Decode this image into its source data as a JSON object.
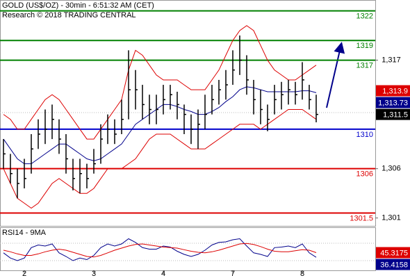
{
  "chart_data": [
    {
      "type": "ohlc",
      "title": "GOLD (US$/OZ) - 30min - 6:51:32 AM (CET)",
      "subtitle": "Research © 2018 TRADING CENTRAL",
      "xlim": [
        -0.5,
        53.5
      ],
      "ylim": [
        1300.2,
        1323.1
      ],
      "yticks": [
        {
          "value": 1317,
          "label": "1,317"
        },
        {
          "value": 1306,
          "label": "1,306"
        },
        {
          "value": 1301,
          "label": "1,301"
        }
      ],
      "xticks": [
        {
          "value": 3,
          "label": "2"
        },
        {
          "value": 13,
          "label": "3"
        },
        {
          "value": 23,
          "label": "4"
        },
        {
          "value": 33,
          "label": "7"
        },
        {
          "value": 43,
          "label": "8"
        }
      ],
      "bar_color": "#000000",
      "high": [
        1309,
        1307.5,
        1306,
        1307,
        1309.5,
        1311,
        1312,
        1312.5,
        1311,
        1309.5,
        1307,
        1307,
        1306.5,
        1308,
        1310.5,
        1311.5,
        1311,
        1313,
        1318,
        1316,
        1314.5,
        1313.5,
        1313.5,
        1314.5,
        1314.5,
        1313.8,
        1312.5,
        1311.5,
        1312,
        1313.5,
        1314.5,
        1315,
        1316,
        1318,
        1319.5,
        1317.5,
        1315,
        1314,
        1312.5,
        1314.5,
        1314.8,
        1315,
        1314.8,
        1316.8,
        1314.5,
        1313.5
      ],
      "low": [
        1306,
        1304.5,
        1303,
        1304,
        1305.5,
        1308,
        1308.5,
        1309,
        1307.5,
        1305.5,
        1303.8,
        1303.5,
        1304,
        1305.5,
        1306.5,
        1308.5,
        1308.5,
        1309.5,
        1311,
        1312,
        1311,
        1310.5,
        1310.5,
        1311.5,
        1312,
        1311,
        1309.5,
        1308.5,
        1308,
        1310,
        1311.5,
        1312.5,
        1313,
        1314.5,
        1315.5,
        1313.5,
        1311.5,
        1310.5,
        1309.8,
        1311.5,
        1312,
        1312.5,
        1312.5,
        1313,
        1312,
        1310.7
      ],
      "close": [
        1307.5,
        1305.5,
        1304.5,
        1305,
        1308,
        1309.5,
        1310,
        1311,
        1309,
        1307,
        1305,
        1305.5,
        1305,
        1306.5,
        1309,
        1310,
        1309.5,
        1311,
        1314,
        1314,
        1312.5,
        1312,
        1312,
        1313,
        1313.5,
        1312.5,
        1311.5,
        1310,
        1310.5,
        1311.5,
        1313,
        1314,
        1314.5,
        1316,
        1317,
        1315,
        1313,
        1312,
        1311,
        1313,
        1313.5,
        1314,
        1313.5,
        1315,
        1313,
        1311.5
      ],
      "bands": {
        "color": "#dd0000",
        "upper": [
          1311.5,
          1311,
          1310,
          1310,
          1311,
          1312,
          1313,
          1313.5,
          1313,
          1312,
          1311,
          1310,
          1309,
          1309,
          1310,
          1311,
          1312,
          1313,
          1316,
          1318,
          1317.5,
          1316.5,
          1315.5,
          1315,
          1315,
          1315,
          1314.5,
          1314,
          1314,
          1314,
          1315,
          1316,
          1317.5,
          1319,
          1320,
          1320.5,
          1320,
          1318.5,
          1317,
          1316,
          1315.5,
          1315,
          1315,
          1315.5,
          1316,
          1316.5
        ],
        "lower": [
          1306,
          1304.5,
          1303,
          1302.5,
          1302,
          1302.5,
          1303.5,
          1304.5,
          1305,
          1304.5,
          1304,
          1303.5,
          1303.5,
          1304,
          1305,
          1306,
          1306,
          1306,
          1306.5,
          1307,
          1308,
          1309,
          1309.5,
          1309.5,
          1309.5,
          1309,
          1308.5,
          1308,
          1308,
          1308,
          1308.5,
          1309,
          1309.5,
          1310,
          1310.5,
          1310.5,
          1310.5,
          1310,
          1310.5,
          1311,
          1311.5,
          1312,
          1312,
          1312,
          1311.5,
          1311
        ]
      },
      "middle_line": {
        "color": "#00008b",
        "values": [
          1309,
          1308,
          1307,
          1306.5,
          1306.5,
          1307,
          1307.5,
          1308,
          1308.5,
          1308.5,
          1308,
          1307.5,
          1307,
          1306.8,
          1307,
          1307.5,
          1308,
          1308.5,
          1309.5,
          1310.5,
          1311,
          1311.5,
          1312,
          1312.5,
          1312.5,
          1312.3,
          1312,
          1311.8,
          1311.5,
          1311.5,
          1311.8,
          1312.2,
          1312.8,
          1313.3,
          1314,
          1314.3,
          1314.2,
          1314,
          1313.8,
          1313.8,
          1313.8,
          1313.8,
          1313.8,
          1313.9,
          1313.9,
          1313.7
        ]
      },
      "levels": [
        {
          "value": 1322,
          "color": "#008000"
        },
        {
          "value": 1319,
          "color": "#008000"
        },
        {
          "value": 1317,
          "color": "#008000"
        },
        {
          "value": 1310,
          "color": "#0000cc"
        },
        {
          "value": 1306,
          "color": "#dd0000"
        },
        {
          "value": 1301.5,
          "color": "#dd0000"
        }
      ],
      "price_tags": [
        {
          "value": 1313.9,
          "label": "1,313.9",
          "color": "#dd0000"
        },
        {
          "value": 1313.73,
          "label": "1,313.73",
          "color": "#00008b"
        },
        {
          "value": 1311.5,
          "label": "1,311.5",
          "color": "#000000"
        }
      ]
    },
    {
      "type": "line",
      "title": "RSI14 - 9MA",
      "xlim": [
        -0.5,
        53.5
      ],
      "ylim": [
        10,
        90
      ],
      "series": [
        {
          "color": "#00008b",
          "values": [
            45,
            35,
            30,
            35,
            55,
            60,
            58,
            62,
            45,
            38,
            30,
            35,
            32,
            40,
            55,
            62,
            58,
            62,
            72,
            65,
            55,
            52,
            52,
            58,
            56,
            48,
            42,
            38,
            42,
            50,
            60,
            65,
            66,
            70,
            72,
            58,
            45,
            42,
            38,
            55,
            56,
            58,
            55,
            62,
            45,
            36.4158
          ]
        },
        {
          "color": "#dd0000",
          "values": [
            50,
            47,
            43,
            40,
            40,
            43,
            47,
            50,
            52,
            50,
            46,
            42,
            38,
            37,
            40,
            45,
            50,
            54,
            58,
            61,
            62,
            60,
            58,
            56,
            55,
            54,
            51,
            48,
            46,
            45,
            47,
            50,
            54,
            58,
            62,
            63,
            61,
            57,
            52,
            48,
            47,
            47,
            49,
            51,
            50,
            45.3175
          ]
        }
      ],
      "tags": [
        {
          "value": 45.3175,
          "color": "#dd0000"
        },
        {
          "value": 36.4158,
          "color": "#00008b"
        }
      ]
    }
  ]
}
